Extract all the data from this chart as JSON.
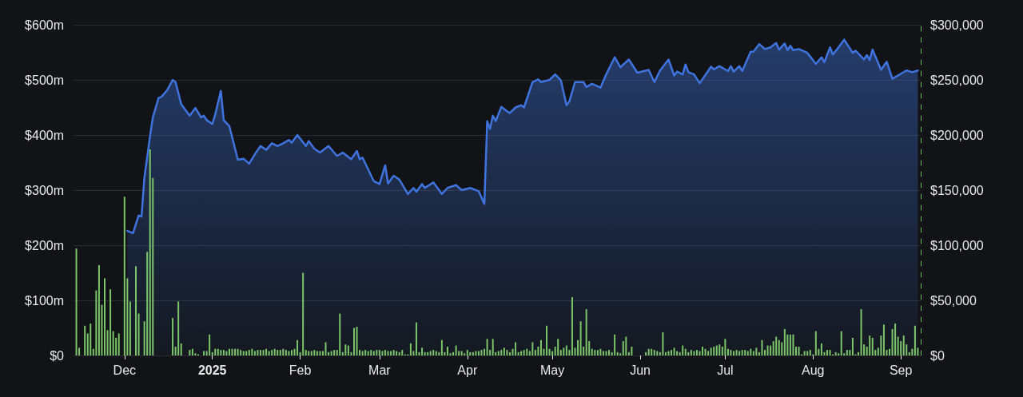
{
  "chart_data": {
    "type": "area",
    "grid": "y",
    "marker": "none",
    "xlim": [
      "2024-11-13",
      "2025-09-08"
    ],
    "xticks": [
      {
        "value": "2024-12-01",
        "label": "Dec"
      },
      {
        "value": "2025-01-01",
        "label": "2025"
      },
      {
        "value": "2025-02-01",
        "label": "Feb"
      },
      {
        "value": "2025-03-01",
        "label": "Mar"
      },
      {
        "value": "2025-04-01",
        "label": "Apr"
      },
      {
        "value": "2025-05-01",
        "label": "May"
      },
      {
        "value": "2025-06-01",
        "label": "Jun"
      },
      {
        "value": "2025-07-01",
        "label": "Jul"
      },
      {
        "value": "2025-08-01",
        "label": "Aug"
      },
      {
        "value": "2025-09-01",
        "label": "Sep"
      }
    ],
    "ylim": [
      0,
      600
    ],
    "yticks": [
      {
        "value": 0,
        "label": "$0"
      },
      {
        "value": 100,
        "label": "$100m"
      },
      {
        "value": 200,
        "label": "$200m"
      },
      {
        "value": 300,
        "label": "$300m"
      },
      {
        "value": 400,
        "label": "$400m"
      },
      {
        "value": 500,
        "label": "$500m"
      },
      {
        "value": 600,
        "label": "$600m"
      }
    ],
    "y2lim": [
      0,
      300000
    ],
    "y2ticks": [
      {
        "value": 0,
        "label": "$0"
      },
      {
        "value": 50000,
        "label": "$50,000"
      },
      {
        "value": 100000,
        "label": "$100,000"
      },
      {
        "value": 150000,
        "label": "$150,000"
      },
      {
        "value": 200000,
        "label": "$200,000"
      },
      {
        "value": 250000,
        "label": "$250,000"
      },
      {
        "value": 300000,
        "label": "$300,000"
      }
    ],
    "series": [
      {
        "color": "#3f74de",
        "x": [
          "2024-12-02",
          "2024-12-04",
          "2024-12-06",
          "2024-12-07",
          "2024-12-08",
          "2024-12-10",
          "2024-12-11",
          "2024-12-13",
          "2024-12-14",
          "2024-12-16",
          "2024-12-18",
          "2024-12-19",
          "2024-12-21",
          "2024-12-22",
          "2024-12-24",
          "2024-12-26",
          "2024-12-28",
          "2024-12-29",
          "2024-12-30",
          "2025-01-01",
          "2025-01-02",
          "2025-01-04",
          "2025-01-05",
          "2025-01-07",
          "2025-01-10",
          "2025-01-12",
          "2025-01-14",
          "2025-01-16",
          "2025-01-18",
          "2025-01-20",
          "2025-01-22",
          "2025-01-24",
          "2025-01-26",
          "2025-01-28",
          "2025-01-29",
          "2025-01-31",
          "2025-02-03",
          "2025-02-04",
          "2025-02-06",
          "2025-02-08",
          "2025-02-11",
          "2025-02-14",
          "2025-02-16",
          "2025-02-19",
          "2025-02-21",
          "2025-02-22",
          "2025-02-23",
          "2025-02-27",
          "2025-03-01",
          "2025-03-03",
          "2025-03-04",
          "2025-03-06",
          "2025-03-08",
          "2025-03-11",
          "2025-03-13",
          "2025-03-14",
          "2025-03-16",
          "2025-03-17",
          "2025-03-20",
          "2025-03-23",
          "2025-03-25",
          "2025-03-28",
          "2025-03-30",
          "2025-04-02",
          "2025-04-05",
          "2025-04-07",
          "2025-04-08",
          "2025-04-09",
          "2025-04-10",
          "2025-04-11",
          "2025-04-13",
          "2025-04-15",
          "2025-04-16",
          "2025-04-18",
          "2025-04-20",
          "2025-04-21",
          "2025-04-24",
          "2025-04-26",
          "2025-04-27",
          "2025-04-30",
          "2025-05-02",
          "2025-05-04",
          "2025-05-06",
          "2025-05-07",
          "2025-05-09",
          "2025-05-12",
          "2025-05-13",
          "2025-05-15",
          "2025-05-18",
          "2025-05-20",
          "2025-05-23",
          "2025-05-25",
          "2025-05-28",
          "2025-05-31",
          "2025-06-04",
          "2025-06-06",
          "2025-06-08",
          "2025-06-11",
          "2025-06-13",
          "2025-06-14",
          "2025-06-16",
          "2025-06-17",
          "2025-06-18",
          "2025-06-20",
          "2025-06-22",
          "2025-06-26",
          "2025-06-27",
          "2025-06-29",
          "2025-07-02",
          "2025-07-03",
          "2025-07-04",
          "2025-07-06",
          "2025-07-07",
          "2025-07-10",
          "2025-07-11",
          "2025-07-13",
          "2025-07-15",
          "2025-07-17",
          "2025-07-19",
          "2025-07-20",
          "2025-07-22",
          "2025-07-23",
          "2025-07-24",
          "2025-07-25",
          "2025-07-27",
          "2025-07-30",
          "2025-08-02",
          "2025-08-04",
          "2025-08-05",
          "2025-08-07",
          "2025-08-08",
          "2025-08-10",
          "2025-08-12",
          "2025-08-15",
          "2025-08-16",
          "2025-08-19",
          "2025-08-20",
          "2025-08-21",
          "2025-08-22",
          "2025-08-25",
          "2025-08-27",
          "2025-08-29",
          "2025-09-03",
          "2025-09-05",
          "2025-09-07"
        ],
        "values": [
          226,
          222,
          254,
          252,
          322,
          398,
          432,
          467,
          469,
          481,
          500,
          496,
          456,
          449,
          435,
          449,
          432,
          435,
          427,
          420,
          437,
          480,
          427,
          416,
          355,
          357,
          348,
          365,
          380,
          373,
          385,
          380,
          385,
          391,
          386,
          400,
          380,
          389,
          375,
          368,
          380,
          362,
          368,
          356,
          371,
          356,
          359,
          316,
          311,
          345,
          312,
          326,
          319,
          293,
          304,
          297,
          311,
          304,
          314,
          293,
          304,
          309,
          300,
          304,
          298,
          275,
          425,
          411,
          435,
          425,
          451,
          443,
          440,
          450,
          454,
          450,
          496,
          501,
          496,
          500,
          510,
          499,
          454,
          461,
          496,
          496,
          487,
          493,
          486,
          510,
          541,
          523,
          537,
          513,
          518,
          496,
          517,
          537,
          508,
          515,
          510,
          528,
          514,
          510,
          494,
          524,
          519,
          525,
          516,
          525,
          515,
          525,
          516,
          551,
          551,
          565,
          556,
          559,
          567,
          555,
          566,
          554,
          562,
          554,
          556,
          549,
          529,
          541,
          532,
          559,
          546,
          559,
          573,
          549,
          553,
          537,
          545,
          536,
          555,
          518,
          533,
          502,
          517,
          514,
          517
        ]
      },
      {
        "type": "bar",
        "axis": "y2",
        "color": "#7cc66a",
        "x": [
          "2024-11-14",
          "2024-11-15",
          "2024-11-17",
          "2024-11-18",
          "2024-11-19",
          "2024-11-20",
          "2024-11-21",
          "2024-11-22",
          "2024-11-23",
          "2024-11-24",
          "2024-11-25",
          "2024-11-26",
          "2024-11-27",
          "2024-11-28",
          "2024-11-29",
          "2024-12-01",
          "2024-12-02",
          "2024-12-03",
          "2024-12-05",
          "2024-12-06",
          "2024-12-08",
          "2024-12-09",
          "2024-12-10",
          "2024-12-11",
          "2024-12-18",
          "2024-12-19",
          "2024-12-20",
          "2024-12-21",
          "2024-12-24",
          "2024-12-25",
          "2024-12-26",
          "2024-12-27",
          "2024-12-29",
          "2024-12-30",
          "2024-12-31",
          "2025-01-01",
          "2025-01-02",
          "2025-01-03",
          "2025-01-04",
          "2025-01-05",
          "2025-01-06",
          "2025-01-07",
          "2025-01-08",
          "2025-01-09",
          "2025-01-10",
          "2025-01-11",
          "2025-01-12",
          "2025-01-13",
          "2025-01-14",
          "2025-01-15",
          "2025-01-16",
          "2025-01-17",
          "2025-01-18",
          "2025-01-19",
          "2025-01-20",
          "2025-01-21",
          "2025-01-22",
          "2025-01-23",
          "2025-01-24",
          "2025-01-25",
          "2025-01-26",
          "2025-01-27",
          "2025-01-28",
          "2025-01-29",
          "2025-01-30",
          "2025-01-31",
          "2025-02-01",
          "2025-02-02",
          "2025-02-03",
          "2025-02-04",
          "2025-02-05",
          "2025-02-06",
          "2025-02-07",
          "2025-02-08",
          "2025-02-09",
          "2025-02-10",
          "2025-02-11",
          "2025-02-12",
          "2025-02-13",
          "2025-02-14",
          "2025-02-15",
          "2025-02-16",
          "2025-02-17",
          "2025-02-18",
          "2025-02-19",
          "2025-02-20",
          "2025-02-21",
          "2025-02-22",
          "2025-02-23",
          "2025-02-24",
          "2025-02-25",
          "2025-02-26",
          "2025-02-27",
          "2025-02-28",
          "2025-03-01",
          "2025-03-02",
          "2025-03-03",
          "2025-03-04",
          "2025-03-05",
          "2025-03-06",
          "2025-03-07",
          "2025-03-08",
          "2025-03-09",
          "2025-03-10",
          "2025-03-11",
          "2025-03-12",
          "2025-03-13",
          "2025-03-14",
          "2025-03-15",
          "2025-03-16",
          "2025-03-17",
          "2025-03-18",
          "2025-03-19",
          "2025-03-20",
          "2025-03-21",
          "2025-03-22",
          "2025-03-23",
          "2025-03-24",
          "2025-03-25",
          "2025-03-26",
          "2025-03-27",
          "2025-03-28",
          "2025-03-29",
          "2025-03-30",
          "2025-03-31",
          "2025-04-01",
          "2025-04-02",
          "2025-04-03",
          "2025-04-04",
          "2025-04-05",
          "2025-04-06",
          "2025-04-07",
          "2025-04-08",
          "2025-04-09",
          "2025-04-10",
          "2025-04-11",
          "2025-04-12",
          "2025-04-13",
          "2025-04-14",
          "2025-04-15",
          "2025-04-16",
          "2025-04-17",
          "2025-04-18",
          "2025-04-19",
          "2025-04-20",
          "2025-04-21",
          "2025-04-22",
          "2025-04-23",
          "2025-04-24",
          "2025-04-25",
          "2025-04-26",
          "2025-04-27",
          "2025-04-28",
          "2025-04-29",
          "2025-04-30",
          "2025-05-01",
          "2025-05-02",
          "2025-05-03",
          "2025-05-04",
          "2025-05-05",
          "2025-05-06",
          "2025-05-07",
          "2025-05-08",
          "2025-05-09",
          "2025-05-10",
          "2025-05-11",
          "2025-05-12",
          "2025-05-13",
          "2025-05-14",
          "2025-05-15",
          "2025-05-16",
          "2025-05-17",
          "2025-05-18",
          "2025-05-19",
          "2025-05-20",
          "2025-05-21",
          "2025-05-22",
          "2025-05-23",
          "2025-05-24",
          "2025-05-25",
          "2025-05-26",
          "2025-05-27",
          "2025-05-28",
          "2025-05-29",
          "2025-06-03",
          "2025-06-04",
          "2025-06-05",
          "2025-06-06",
          "2025-06-07",
          "2025-06-08",
          "2025-06-09",
          "2025-06-10",
          "2025-06-11",
          "2025-06-12",
          "2025-06-13",
          "2025-06-14",
          "2025-06-15",
          "2025-06-16",
          "2025-06-17",
          "2025-06-18",
          "2025-06-19",
          "2025-06-20",
          "2025-06-21",
          "2025-06-22",
          "2025-06-23",
          "2025-06-24",
          "2025-06-25",
          "2025-06-26",
          "2025-06-27",
          "2025-06-28",
          "2025-06-29",
          "2025-06-30",
          "2025-07-01",
          "2025-07-02",
          "2025-07-03",
          "2025-07-04",
          "2025-07-05",
          "2025-07-06",
          "2025-07-07",
          "2025-07-08",
          "2025-07-09",
          "2025-07-10",
          "2025-07-11",
          "2025-07-12",
          "2025-07-13",
          "2025-07-14",
          "2025-07-15",
          "2025-07-16",
          "2025-07-17",
          "2025-07-18",
          "2025-07-19",
          "2025-07-20",
          "2025-07-21",
          "2025-07-22",
          "2025-07-23",
          "2025-07-24",
          "2025-07-25",
          "2025-07-26",
          "2025-07-27",
          "2025-07-28",
          "2025-07-29",
          "2025-07-30",
          "2025-07-31",
          "2025-08-01",
          "2025-08-02",
          "2025-08-03",
          "2025-08-04",
          "2025-08-05",
          "2025-08-06",
          "2025-08-07",
          "2025-08-08",
          "2025-08-09",
          "2025-08-10",
          "2025-08-11",
          "2025-08-12",
          "2025-08-13",
          "2025-08-14",
          "2025-08-15",
          "2025-08-16",
          "2025-08-17",
          "2025-08-18",
          "2025-08-19",
          "2025-08-20",
          "2025-08-21",
          "2025-08-22",
          "2025-08-23",
          "2025-08-24",
          "2025-08-25",
          "2025-08-26",
          "2025-08-27",
          "2025-08-28",
          "2025-08-29",
          "2025-08-30",
          "2025-08-31",
          "2025-09-01",
          "2025-09-02",
          "2025-09-03",
          "2025-09-04",
          "2025-09-05",
          "2025-09-06",
          "2025-09-07"
        ],
        "values": [
          97000,
          7000,
          27000,
          20000,
          29000,
          6000,
          59000,
          82000,
          46000,
          70000,
          23000,
          60000,
          22000,
          16000,
          20000,
          144000,
          70000,
          49000,
          81000,
          38000,
          31000,
          94000,
          187000,
          161000,
          34000,
          8000,
          49000,
          11000,
          5000,
          6000,
          2000,
          1000,
          4000,
          4000,
          19000,
          3000,
          6000,
          6000,
          5000,
          5000,
          4000,
          6000,
          6000,
          6000,
          6000,
          5000,
          4000,
          4000,
          5000,
          6000,
          4000,
          5000,
          5000,
          5000,
          6000,
          4000,
          5000,
          6000,
          5000,
          5000,
          6000,
          5000,
          4000,
          5000,
          6000,
          14000,
          3000,
          75000,
          5000,
          4000,
          4000,
          5000,
          4000,
          4000,
          4000,
          12000,
          3000,
          4000,
          5000,
          5000,
          38000,
          3000,
          10000,
          9000,
          3000,
          25000,
          26000,
          5000,
          4000,
          5000,
          4000,
          5000,
          4000,
          5000,
          5000,
          4000,
          5000,
          4000,
          4000,
          5000,
          4000,
          3000,
          5000,
          1000,
          1000,
          11000,
          4000,
          30000,
          3000,
          7000,
          3000,
          3000,
          4000,
          5000,
          4000,
          3000,
          14000,
          3000,
          8000,
          2000,
          3000,
          9000,
          4000,
          4000,
          2000,
          5000,
          3000,
          3000,
          4000,
          4000,
          5000,
          6000,
          15000,
          5000,
          15000,
          3000,
          4000,
          5000,
          7000,
          5000,
          3000,
          6000,
          12000,
          3000,
          4000,
          5000,
          6000,
          4000,
          12000,
          5000,
          8000,
          14000,
          6000,
          27000,
          6000,
          4000,
          8000,
          15000,
          5000,
          7000,
          9000,
          5000,
          53000,
          7000,
          14000,
          31000,
          8000,
          42000,
          13000,
          6000,
          5000,
          5000,
          6000,
          4000,
          4000,
          5000,
          3000,
          19000,
          3000,
          2000,
          13000,
          17000,
          3000,
          8000,
          3000,
          6000,
          6000,
          5000,
          4000,
          3000,
          21000,
          3000,
          4000,
          5000,
          7000,
          4000,
          3000,
          9000,
          6000,
          3000,
          5000,
          4000,
          5000,
          4000,
          8000,
          6000,
          4000,
          7000,
          8000,
          9000,
          10000,
          8000,
          15000,
          6000,
          5000,
          4000,
          5000,
          4000,
          5000,
          5000,
          4000,
          6000,
          4000,
          7000,
          3000,
          14000,
          5000,
          9000,
          9000,
          13000,
          17000,
          14000,
          12000,
          24000,
          19000,
          19000,
          19000,
          8000,
          8000,
          1000,
          4000,
          4000,
          5000,
          1000,
          22000,
          6000,
          11000,
          3000,
          5000,
          5000,
          1000,
          3000,
          2000,
          22000,
          2000,
          5000,
          5000,
          16000,
          1000,
          3000,
          42000,
          10000,
          8000,
          18000,
          16000,
          5000,
          7000,
          18000,
          28000,
          5000,
          6000,
          24000,
          29000,
          17000,
          13000,
          18000,
          10000,
          3000,
          6000,
          27000,
          7000
        ]
      }
    ]
  }
}
